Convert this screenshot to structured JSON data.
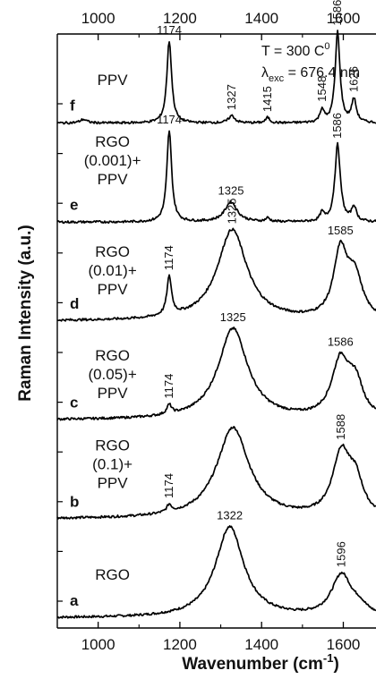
{
  "chart_data": {
    "type": "line",
    "xlabel": "Wavenumber (cm",
    "xlabel_sup": "-1",
    "xlabel_close": ")",
    "ylabel": "Raman Intensity (a.u.)",
    "xlim": [
      900,
      1680
    ],
    "x_ticks": [
      "1000",
      "1200",
      "1400",
      "1600"
    ],
    "annotation": {
      "line1_prefix": "T = 300 C",
      "line1_sup": "0",
      "line2_main": "λ",
      "line2_sub": "exc",
      "line2_rest": " = 676.4 nm"
    },
    "grid": false,
    "series": [
      {
        "letter": "a",
        "label_lines": [
          "RGO"
        ],
        "label_x": 1035,
        "label_level": 0.42,
        "peaks": [
          {
            "x": 1322,
            "h": 1.0,
            "w": 42
          },
          {
            "x": 1596,
            "h": 0.46,
            "w": 30
          },
          {
            "x": 1640,
            "h": 0.08,
            "w": 22
          }
        ],
        "peak_labels": [
          {
            "text": "1322",
            "x": 1322,
            "rotated": false
          },
          {
            "text": "1596",
            "x": 1596,
            "rotated": true
          }
        ]
      },
      {
        "letter": "b",
        "label_lines": [
          "RGO",
          "(0.1)+",
          "PPV"
        ],
        "label_x": 1035,
        "label_level": 0.55,
        "peaks": [
          {
            "x": 1174,
            "h": 0.08,
            "w": 7
          },
          {
            "x": 1330,
            "h": 1.0,
            "w": 48
          },
          {
            "x": 1595,
            "h": 0.68,
            "w": 26
          },
          {
            "x": 1630,
            "h": 0.35,
            "w": 22
          }
        ],
        "peak_labels": [
          {
            "text": "1174",
            "x": 1174,
            "rotated": true
          },
          {
            "text": "1588",
            "x": 1595,
            "rotated": true
          }
        ]
      },
      {
        "letter": "c",
        "label_lines": [
          "RGO",
          "(0.05)+",
          "PPV"
        ],
        "label_x": 1035,
        "label_level": 0.45,
        "peaks": [
          {
            "x": 1174,
            "h": 0.1,
            "w": 7
          },
          {
            "x": 1330,
            "h": 1.0,
            "w": 44
          },
          {
            "x": 1593,
            "h": 0.62,
            "w": 26
          },
          {
            "x": 1630,
            "h": 0.35,
            "w": 22
          }
        ],
        "peak_labels": [
          {
            "text": "1174",
            "x": 1174,
            "rotated": true
          },
          {
            "text": "1325",
            "x": 1330,
            "rotated": false
          },
          {
            "text": "1586",
            "x": 1593,
            "rotated": false
          }
        ]
      },
      {
        "letter": "d",
        "label_lines": [
          "RGO",
          "(0.01)+",
          "PPV"
        ],
        "label_x": 1035,
        "label_level": 0.5,
        "peaks": [
          {
            "x": 1174,
            "h": 0.42,
            "w": 7
          },
          {
            "x": 1328,
            "h": 1.0,
            "w": 44
          },
          {
            "x": 1593,
            "h": 0.72,
            "w": 20
          },
          {
            "x": 1628,
            "h": 0.45,
            "w": 22
          }
        ],
        "peak_labels": [
          {
            "text": "1174",
            "x": 1174,
            "rotated": true
          },
          {
            "text": "1325",
            "x": 1328,
            "rotated": true
          },
          {
            "text": "1585",
            "x": 1593,
            "rotated": false
          }
        ]
      },
      {
        "letter": "e",
        "label_lines": [
          "RGO",
          "(0.001)+",
          "PPV"
        ],
        "label_x": 1035,
        "label_level": 0.62,
        "peaks": [
          {
            "x": 1174,
            "h": 1.0,
            "w": 7
          },
          {
            "x": 1325,
            "h": 0.22,
            "w": 18
          },
          {
            "x": 1415,
            "h": 0.04,
            "w": 6
          },
          {
            "x": 1548,
            "h": 0.09,
            "w": 6
          },
          {
            "x": 1586,
            "h": 0.85,
            "w": 8
          },
          {
            "x": 1626,
            "h": 0.16,
            "w": 7
          }
        ],
        "peak_labels": [
          {
            "text": "1174",
            "x": 1174,
            "rotated": false
          },
          {
            "text": "1325",
            "x": 1325,
            "rotated": false
          },
          {
            "text": "1586",
            "x": 1586,
            "rotated": true
          }
        ]
      },
      {
        "letter": "f",
        "label_lines": [
          "PPV"
        ],
        "label_x": 1035,
        "label_level": 0.42,
        "peaks": [
          {
            "x": 964,
            "h": 0.04,
            "w": 10
          },
          {
            "x": 1174,
            "h": 0.9,
            "w": 7
          },
          {
            "x": 1327,
            "h": 0.08,
            "w": 9
          },
          {
            "x": 1415,
            "h": 0.06,
            "w": 6
          },
          {
            "x": 1548,
            "h": 0.14,
            "w": 6
          },
          {
            "x": 1586,
            "h": 1.0,
            "w": 7
          },
          {
            "x": 1626,
            "h": 0.25,
            "w": 7
          }
        ],
        "peak_labels": [
          {
            "text": "1174",
            "x": 1174,
            "rotated": false
          },
          {
            "text": "1327",
            "x": 1327,
            "rotated": true
          },
          {
            "text": "1415",
            "x": 1415,
            "rotated": true
          },
          {
            "text": "1548",
            "x": 1548,
            "rotated": true
          },
          {
            "text": "1586",
            "x": 1586,
            "rotated": true
          },
          {
            "text": "1626",
            "x": 1626,
            "rotated": true
          }
        ]
      }
    ]
  }
}
